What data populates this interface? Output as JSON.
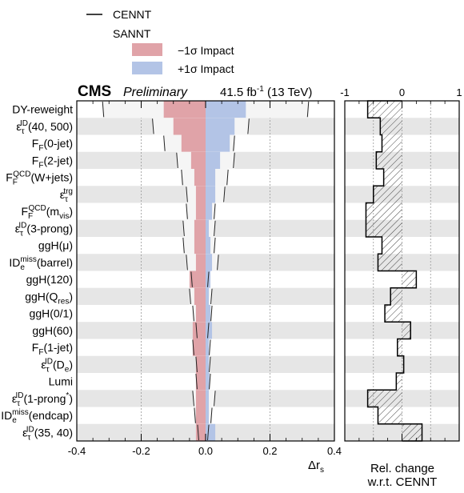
{
  "header": {
    "experiment": "CMS",
    "status": "Preliminary",
    "lumi": "41.5 fb",
    "lumi_exp": "-1",
    "energy": " (13 TeV)"
  },
  "legend": {
    "cennt": "CENNT",
    "sannt": "SANNT",
    "minus": "−1σ Impact",
    "plus": "+1σ Impact"
  },
  "colors": {
    "minus": "#e0a3a8",
    "plus": "#b3c4e6",
    "band": "#e6e6e6",
    "cennt_band": "#f5f5f5"
  },
  "labels": [
    {
      "id": "dy-reweight",
      "segs": [
        [
          "DY-reweight",
          "n"
        ]
      ]
    },
    {
      "id": "eps-tau-id-40-500",
      "segs": [
        [
          "ε",
          "n"
        ],
        [
          "τ",
          "sub"
        ],
        [
          "ID",
          "sup"
        ],
        [
          "(40, 500)",
          "n"
        ]
      ]
    },
    {
      "id": "ff-0jet",
      "segs": [
        [
          "F",
          "n"
        ],
        [
          "F",
          "sub"
        ],
        [
          "(0-jet)",
          "n"
        ]
      ]
    },
    {
      "id": "ff-2jet",
      "segs": [
        [
          "F",
          "n"
        ],
        [
          "F",
          "sub"
        ],
        [
          "(2-jet)",
          "n"
        ]
      ]
    },
    {
      "id": "ff-qcd-wjets",
      "segs": [
        [
          "F",
          "n"
        ],
        [
          "F",
          "sub"
        ],
        [
          "QCD",
          "sup"
        ],
        [
          "(W+jets)",
          "n"
        ]
      ]
    },
    {
      "id": "eps-tau-trg",
      "segs": [
        [
          "ε",
          "n"
        ],
        [
          "τ",
          "sub"
        ],
        [
          "trg",
          "sup"
        ]
      ]
    },
    {
      "id": "ff-qcd-mvis",
      "segs": [
        [
          "F",
          "n"
        ],
        [
          "F",
          "sub"
        ],
        [
          "QCD",
          "sup"
        ],
        [
          "(m",
          "n"
        ],
        [
          "vis",
          "sub"
        ],
        [
          ")",
          "n"
        ]
      ]
    },
    {
      "id": "eps-tau-id-3prong",
      "segs": [
        [
          "ε",
          "n"
        ],
        [
          "τ",
          "sub"
        ],
        [
          "ID",
          "sup"
        ],
        [
          "(3-prong)",
          "n"
        ]
      ]
    },
    {
      "id": "ggh-mu",
      "segs": [
        [
          "ggH(μ)",
          "n"
        ]
      ]
    },
    {
      "id": "id-e-miss-barrel",
      "segs": [
        [
          "ID",
          "n"
        ],
        [
          "e",
          "sub"
        ],
        [
          "miss",
          "sup"
        ],
        [
          "(barrel)",
          "n"
        ]
      ]
    },
    {
      "id": "ggh-120",
      "segs": [
        [
          "ggH(120)",
          "n"
        ]
      ]
    },
    {
      "id": "ggh-qres",
      "segs": [
        [
          "ggH(Q",
          "n"
        ],
        [
          "res",
          "sub"
        ],
        [
          ")",
          "n"
        ]
      ]
    },
    {
      "id": "ggh-01",
      "segs": [
        [
          "ggH(0/1)",
          "n"
        ]
      ]
    },
    {
      "id": "ggh-60",
      "segs": [
        [
          "ggH(60)",
          "n"
        ]
      ]
    },
    {
      "id": "ff-1jet",
      "segs": [
        [
          "F",
          "n"
        ],
        [
          "F",
          "sub"
        ],
        [
          "(1-jet)",
          "n"
        ]
      ]
    },
    {
      "id": "eps-tau-id-de",
      "segs": [
        [
          "ε",
          "n"
        ],
        [
          "τ",
          "sub"
        ],
        [
          "ID",
          "sup"
        ],
        [
          "(D",
          "n"
        ],
        [
          "e",
          "sub"
        ],
        [
          ")",
          "n"
        ]
      ]
    },
    {
      "id": "lumi",
      "segs": [
        [
          "Lumi",
          "n"
        ]
      ]
    },
    {
      "id": "eps-tau-id-1prong",
      "segs": [
        [
          "ε",
          "n"
        ],
        [
          "τ",
          "sub"
        ],
        [
          "ID",
          "sup"
        ],
        [
          "(1-prong",
          "n"
        ],
        [
          "*",
          "sup"
        ],
        [
          ")",
          "n"
        ]
      ]
    },
    {
      "id": "id-e-miss-endcap",
      "segs": [
        [
          "ID",
          "n"
        ],
        [
          "e",
          "sub"
        ],
        [
          "miss",
          "sup"
        ],
        [
          "(endcap)",
          "n"
        ]
      ]
    },
    {
      "id": "eps-tau-id-35-40",
      "segs": [
        [
          "ε",
          "n"
        ],
        [
          "τ",
          "sub"
        ],
        [
          "ID",
          "sup"
        ],
        [
          "(35, 40)",
          "n"
        ]
      ]
    }
  ],
  "chart_data": [
    {
      "type": "bar",
      "orientation": "horizontal",
      "xlabel": "Δr",
      "xlabel_sub": "s",
      "xlim": [
        -0.4,
        0.4
      ],
      "xticks": [
        -0.4,
        -0.2,
        0.0,
        0.2,
        0.4
      ],
      "xtick_labels": [
        "-0.4",
        "-0.2",
        "0.0",
        "0.2",
        "0.4"
      ],
      "grid": "vertical dotted",
      "series_sannt_minus": [
        -0.13,
        -0.1,
        -0.075,
        -0.045,
        -0.035,
        -0.03,
        -0.03,
        -0.035,
        -0.035,
        -0.03,
        -0.05,
        -0.035,
        -0.03,
        -0.04,
        -0.04,
        -0.03,
        -0.03,
        -0.03,
        -0.03,
        -0.03
      ],
      "series_sannt_plus": [
        0.125,
        0.09,
        0.075,
        0.045,
        0.03,
        0.03,
        0.02,
        0.01,
        0.015,
        0.02,
        0.015,
        0.01,
        0.015,
        0.02,
        0.01,
        0.01,
        0.012,
        0.01,
        0.01,
        0.03
      ],
      "series_cennt_low": [
        -0.32,
        -0.165,
        -0.13,
        -0.09,
        -0.075,
        -0.06,
        -0.06,
        -0.07,
        -0.07,
        -0.06,
        -0.045,
        -0.05,
        -0.04,
        -0.03,
        -0.04,
        -0.03,
        -0.03,
        -0.04,
        -0.035,
        -0.025
      ],
      "series_cennt_high": [
        0.32,
        0.135,
        0.09,
        0.09,
        0.07,
        0.06,
        0.03,
        0.03,
        0.03,
        0.04,
        0.01,
        0.02,
        0.02,
        0.01,
        0.015,
        0.015,
        0.015,
        0.03,
        0.02,
        0.01
      ]
    },
    {
      "type": "bar",
      "orientation": "horizontal",
      "xlabel": "Rel. change",
      "xlabel_line2": "w.r.t. CENNT",
      "xlim": [
        -1,
        1
      ],
      "xticks": [
        -1,
        0,
        1
      ],
      "xtick_labels": [
        "-1",
        "0",
        "1"
      ],
      "grid": "vertical dotted",
      "values": [
        -0.6,
        -0.38,
        -0.35,
        -0.45,
        -0.32,
        -0.5,
        -0.63,
        -0.63,
        -0.35,
        -0.42,
        0.25,
        -0.2,
        -0.3,
        0.15,
        -0.08,
        0.03,
        -0.1,
        -0.6,
        -0.42,
        0.35
      ]
    }
  ]
}
